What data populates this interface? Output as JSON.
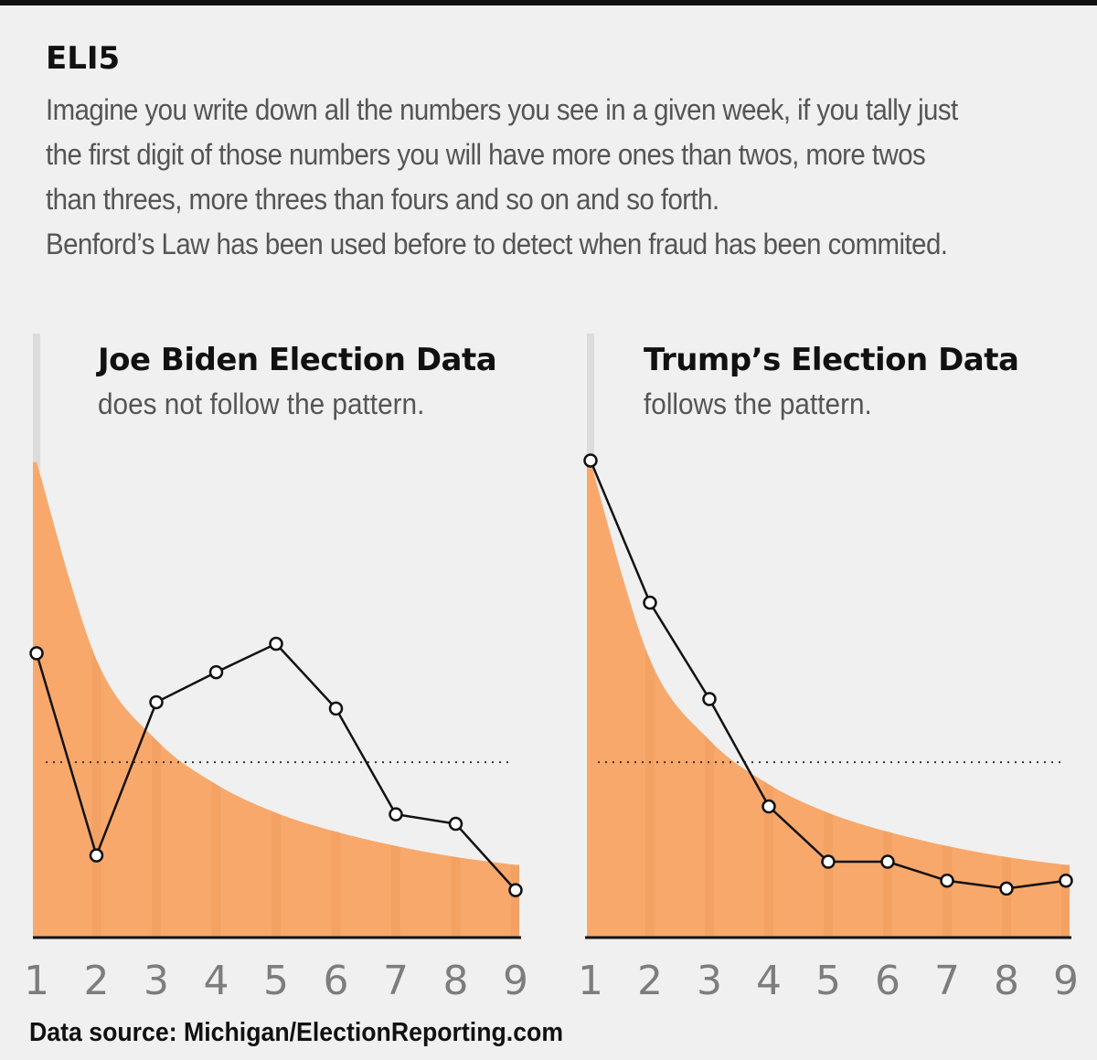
{
  "header": {
    "heading": "ELI5",
    "lines": [
      "Imagine you write down all the numbers you see in a given week, if you tally just",
      "the first digit of those numbers you will have more ones than twos, more twos",
      "than threes, more threes than fours and so on and so forth.",
      "Benford’s Law has been used before to detect when fraud has been commited."
    ]
  },
  "panels": [
    {
      "title": "Joe Biden Election Data",
      "subtitle": "does not follow the pattern."
    },
    {
      "title": "Trump’s Election Data",
      "subtitle": "follows the pattern."
    }
  ],
  "source": "Data source: Michigan/ElectionReporting.com",
  "chart_data": [
    {
      "type": "line",
      "title": "Joe Biden Election Data",
      "subtitle": "does not follow the pattern.",
      "x": [
        "1",
        "2",
        "3",
        "4",
        "5",
        "6",
        "7",
        "8",
        "9"
      ],
      "ylim": [
        0,
        0.35
      ],
      "reference_line": 0.111,
      "series": [
        {
          "kind": "area",
          "values": [
            0.301,
            0.176,
            0.125,
            0.097,
            0.079,
            0.067,
            0.058,
            0.051,
            0.046
          ]
        },
        {
          "kind": "line",
          "values": [
            0.18,
            0.052,
            0.149,
            0.168,
            0.186,
            0.145,
            0.078,
            0.072,
            0.03
          ]
        }
      ],
      "colors": {
        "area": "#f9a86b",
        "line": "#111111",
        "marker_fill": "#ffffff"
      }
    },
    {
      "type": "line",
      "title": "Trump’s Election Data",
      "subtitle": "follows the pattern.",
      "x": [
        "1",
        "2",
        "3",
        "4",
        "5",
        "6",
        "7",
        "8",
        "9"
      ],
      "ylim": [
        0,
        0.35
      ],
      "reference_line": 0.111,
      "series": [
        {
          "kind": "area",
          "values": [
            0.301,
            0.176,
            0.125,
            0.097,
            0.079,
            0.067,
            0.058,
            0.051,
            0.046
          ]
        },
        {
          "kind": "line",
          "values": [
            0.302,
            0.212,
            0.151,
            0.083,
            0.048,
            0.048,
            0.036,
            0.031,
            0.036
          ]
        }
      ],
      "colors": {
        "area": "#f9a86b",
        "line": "#111111",
        "marker_fill": "#ffffff"
      }
    }
  ]
}
